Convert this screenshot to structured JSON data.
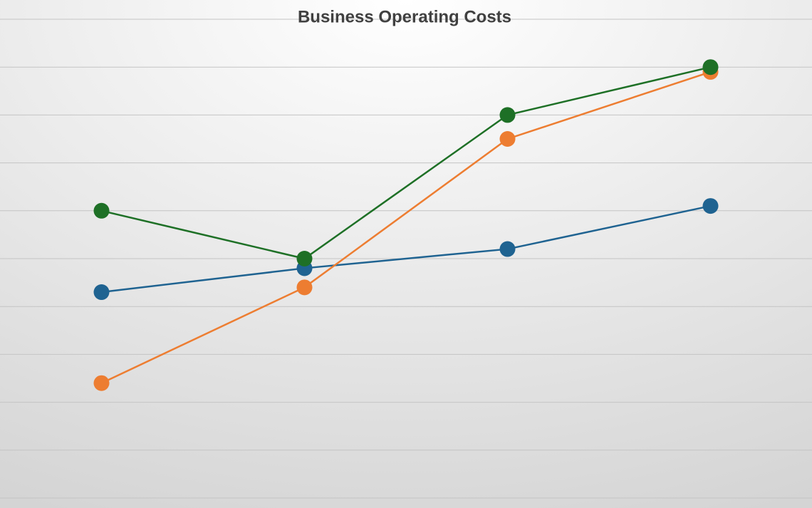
{
  "chart_data": {
    "type": "line",
    "title": "Business Operating Costs",
    "categories": [
      null,
      null,
      null,
      null
    ],
    "series": [
      {
        "color": "#1f6391",
        "values": [
          4.3,
          4.8,
          5.2,
          6.1
        ]
      },
      {
        "color": "#ed7d31",
        "values": [
          2.4,
          4.4,
          7.5,
          8.9
        ]
      },
      {
        "color": "#1e7026",
        "values": [
          6.0,
          5.0,
          8.0,
          9.0
        ]
      }
    ],
    "ylim": [
      0,
      10
    ],
    "yticks": [
      0,
      1,
      2,
      3,
      4,
      5,
      6,
      7,
      8,
      9,
      10
    ],
    "grid": true
  }
}
